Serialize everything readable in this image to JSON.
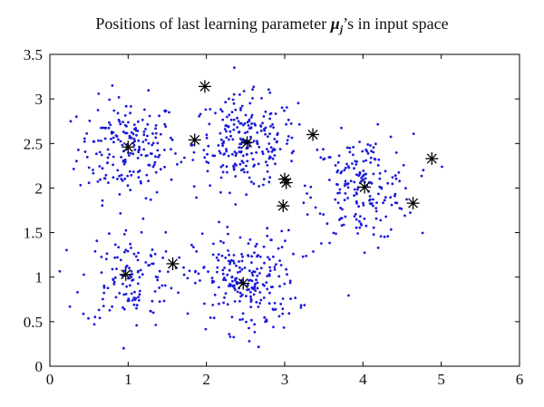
{
  "chart_data": {
    "type": "scatter",
    "title": {
      "pre": "Positions of last learning parameter ",
      "symbol": "μ",
      "subscript": "j",
      "post": "’s in input space"
    },
    "xlabel": "",
    "ylabel": "",
    "xlim": [
      0,
      6
    ],
    "ylim": [
      0,
      3.5
    ],
    "x_ticks": [
      "0",
      "1",
      "2",
      "3",
      "4",
      "5",
      "6"
    ],
    "y_ticks": [
      "0",
      "0.5",
      "1",
      "1.5",
      "2",
      "2.5",
      "3",
      "3.5"
    ],
    "grid": false,
    "colors": {
      "points": "#1a1adb",
      "markers": "#000000"
    },
    "point_clusters": [
      {
        "center": [
          1.0,
          2.45
        ],
        "spread": [
          0.32,
          0.28
        ],
        "count": 200
      },
      {
        "center": [
          2.5,
          2.5
        ],
        "spread": [
          0.33,
          0.26
        ],
        "count": 240
      },
      {
        "center": [
          4.0,
          2.0
        ],
        "spread": [
          0.32,
          0.3
        ],
        "count": 200
      },
      {
        "center": [
          1.0,
          1.0
        ],
        "spread": [
          0.3,
          0.28
        ],
        "count": 130
      },
      {
        "center": [
          2.5,
          0.95
        ],
        "spread": [
          0.33,
          0.28
        ],
        "count": 230
      }
    ],
    "mu_points": [
      {
        "x": 1.0,
        "y": 2.46
      },
      {
        "x": 2.52,
        "y": 2.51
      },
      {
        "x": 1.85,
        "y": 2.54
      },
      {
        "x": 1.98,
        "y": 3.14
      },
      {
        "x": 3.36,
        "y": 2.6
      },
      {
        "x": 3.0,
        "y": 2.1
      },
      {
        "x": 3.02,
        "y": 2.06
      },
      {
        "x": 2.98,
        "y": 1.8
      },
      {
        "x": 4.02,
        "y": 2.01
      },
      {
        "x": 4.64,
        "y": 1.83
      },
      {
        "x": 4.88,
        "y": 2.33
      },
      {
        "x": 0.97,
        "y": 1.03
      },
      {
        "x": 1.57,
        "y": 1.15
      },
      {
        "x": 2.47,
        "y": 0.93
      }
    ]
  }
}
